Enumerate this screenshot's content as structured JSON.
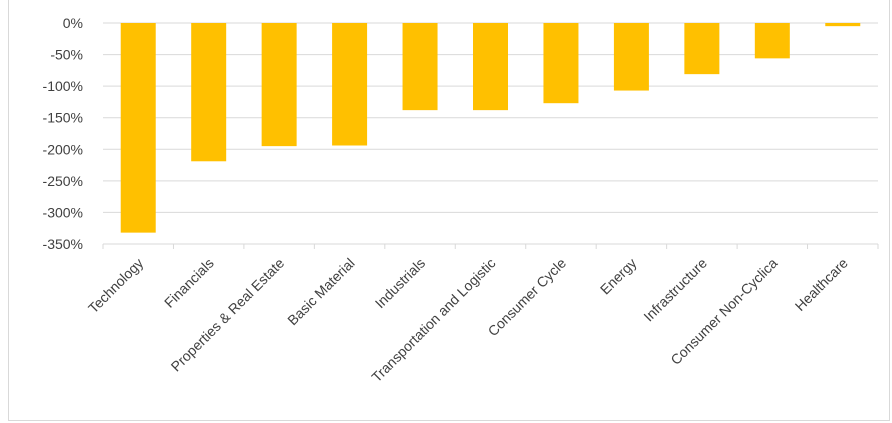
{
  "chart_data": {
    "type": "bar",
    "title": "",
    "xlabel": "",
    "ylabel": "",
    "categories": [
      "Technology",
      "Financials",
      "Properties & Real Estate",
      "Basic Material",
      "Industrials",
      "Transportation and Logistic",
      "Consumer Cycle",
      "Energy",
      "Infrastructure",
      "Consumer Non-Cyclica",
      "Healthcare"
    ],
    "values": [
      -332,
      -219,
      -195,
      -194,
      -138,
      -138,
      -127,
      -107,
      -81,
      -56,
      -5
    ],
    "ylim": [
      -350,
      0
    ],
    "yticks": [
      0,
      -50,
      -100,
      -150,
      -200,
      -250,
      -300,
      -350
    ],
    "ytick_labels": [
      "0%",
      "-50%",
      "-100%",
      "-150%",
      "-200%",
      "-250%",
      "-300%",
      "-350%"
    ],
    "grid": true,
    "bar_color": "#FFC000",
    "grid_color": "#D9D9D9"
  }
}
